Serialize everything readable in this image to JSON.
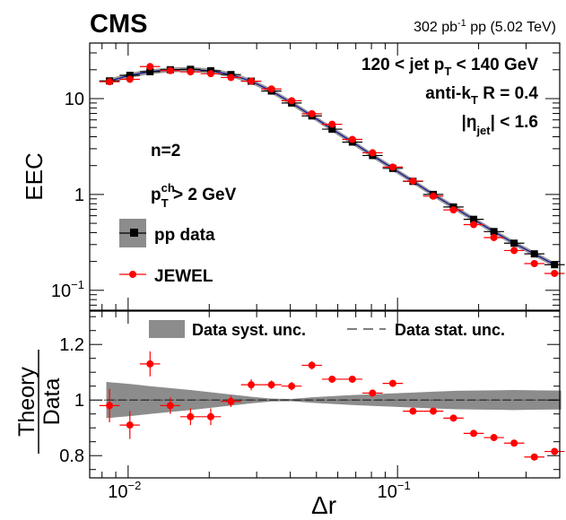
{
  "header": {
    "experiment": "CMS",
    "lumi_value": "302 pb",
    "lumi_sup": "-1",
    "lumi_rest": " pp (5.02 TeV)"
  },
  "annotations": {
    "jet_pt": {
      "pre": "120 < jet p",
      "sub": "T",
      "post": " < 140 GeV"
    },
    "algo": {
      "pre": "anti-k",
      "sub": "T",
      "post": " R = 0.4"
    },
    "eta": {
      "pre": "|η",
      "sub": "jet",
      "post": "| < 1.6"
    },
    "n": "n=2",
    "track_pt": {
      "pre": "p",
      "sup": "ch",
      "sub": "T",
      "post": " > 2 GeV"
    }
  },
  "legend": {
    "pp_data": "pp data",
    "jewel": "JEWEL",
    "syst": "Data syst. unc.",
    "stat": "Data stat. unc."
  },
  "axes": {
    "xlabel": "Δr",
    "top_ylabel": "EEC",
    "ratio_ylabel_num": "Theory",
    "ratio_ylabel_den": "Data",
    "top_yticks": [
      {
        "v": 0.1,
        "t": "10",
        "s": "−1"
      },
      {
        "v": 1,
        "t": "1",
        "s": ""
      },
      {
        "v": 10,
        "t": "10",
        "s": ""
      }
    ],
    "ratio_yticks": [
      {
        "v": 0.8,
        "t": "0.8"
      },
      {
        "v": 1.0,
        "t": "1"
      },
      {
        "v": 1.2,
        "t": "1.2"
      }
    ],
    "xticks": [
      {
        "v": 0.01,
        "t": "10",
        "s": "−2"
      },
      {
        "v": 0.1,
        "t": "10",
        "s": "−1"
      }
    ]
  },
  "colors": {
    "data": "#000000",
    "jewel": "#ff0000",
    "band": "#8c8c8c",
    "curve": "#1a1a99"
  },
  "chart_data": {
    "type": "scatter",
    "x_scale": "log",
    "xlim": [
      0.0072,
      0.4
    ],
    "top_panel": {
      "y_scale": "log",
      "ylim": [
        0.062,
        38
      ],
      "x": [
        0.00853,
        0.01015,
        0.01206,
        0.01434,
        0.01704,
        0.02026,
        0.02408,
        0.02863,
        0.03403,
        0.04045,
        0.04808,
        0.05716,
        0.06795,
        0.08077,
        0.09601,
        0.1141,
        0.1357,
        0.1613,
        0.1917,
        0.2279,
        0.2709,
        0.322,
        0.3827
      ],
      "x_err": [
        [
          0.00782,
          0.0093
        ],
        [
          0.0093,
          0.01105
        ],
        [
          0.01105,
          0.01314
        ],
        [
          0.01314,
          0.01562
        ],
        [
          0.01562,
          0.01857
        ],
        [
          0.01857,
          0.02208
        ],
        [
          0.02208,
          0.02624
        ],
        [
          0.02624,
          0.0312
        ],
        [
          0.0312,
          0.03709
        ],
        [
          0.03709,
          0.04409
        ],
        [
          0.04409,
          0.05241
        ],
        [
          0.05241,
          0.0623
        ],
        [
          0.0623,
          0.07406
        ],
        [
          0.07406,
          0.08804
        ],
        [
          0.08804,
          0.1047
        ],
        [
          0.1047,
          0.1244
        ],
        [
          0.1244,
          0.1479
        ],
        [
          0.1479,
          0.1758
        ],
        [
          0.1758,
          0.209
        ],
        [
          0.209,
          0.2485
        ],
        [
          0.2485,
          0.2954
        ],
        [
          0.2954,
          0.3511
        ],
        [
          0.3511,
          0.4174
        ]
      ],
      "series": [
        {
          "name": "pp data",
          "marker": "square",
          "y": [
            15.3,
            17.5,
            19.1,
            20.0,
            20.2,
            19.5,
            17.8,
            15.2,
            12.0,
            9.0,
            6.6,
            4.8,
            3.52,
            2.55,
            1.87,
            1.37,
            1.0,
            0.74,
            0.55,
            0.41,
            0.31,
            0.24,
            0.185
          ]
        },
        {
          "name": "JEWEL",
          "marker": "circle",
          "y": [
            15.0,
            15.9,
            21.6,
            19.6,
            19.0,
            18.2,
            16.6,
            15.2,
            12.6,
            9.5,
            6.95,
            5.4,
            3.75,
            2.72,
            1.93,
            1.38,
            0.96,
            0.69,
            0.485,
            0.355,
            0.26,
            0.19,
            0.15
          ],
          "y_err": [
            0.9,
            0.8,
            0.8,
            0.6,
            0.5,
            0.4,
            0.3,
            0.25,
            0.2,
            0.12,
            0.08,
            0.06,
            0.04,
            0.03,
            0.02,
            0.015,
            0.01,
            0.008,
            0.006,
            0.005,
            0.004,
            0.003,
            0.003
          ]
        }
      ]
    },
    "ratio_panel": {
      "y_scale": "linear",
      "ylim": [
        0.72,
        1.32
      ],
      "reference": 1.0,
      "syst_band_half_width": [
        0.065,
        0.058,
        0.05,
        0.043,
        0.036,
        0.028,
        0.02,
        0.012,
        0.005,
        0.004,
        0.01,
        0.014,
        0.018,
        0.021,
        0.024,
        0.027,
        0.03,
        0.033,
        0.034,
        0.035,
        0.036,
        0.035,
        0.034
      ],
      "series": [
        {
          "name": "JEWEL",
          "y": [
            0.98,
            0.91,
            1.13,
            0.98,
            0.94,
            0.94,
            0.995,
            1.055,
            1.055,
            1.05,
            1.125,
            1.075,
            1.075,
            1.025,
            1.06,
            0.96,
            0.96,
            0.935,
            0.88,
            0.865,
            0.845,
            0.795,
            0.815
          ],
          "y_err": [
            0.06,
            0.05,
            0.045,
            0.03,
            0.03,
            0.03,
            0.02,
            0.02,
            0.015,
            0.015,
            0.015,
            0.012,
            0.012,
            0.012,
            0.012,
            0.01,
            0.01,
            0.01,
            0.01,
            0.01,
            0.01,
            0.01,
            0.012
          ]
        }
      ]
    }
  }
}
